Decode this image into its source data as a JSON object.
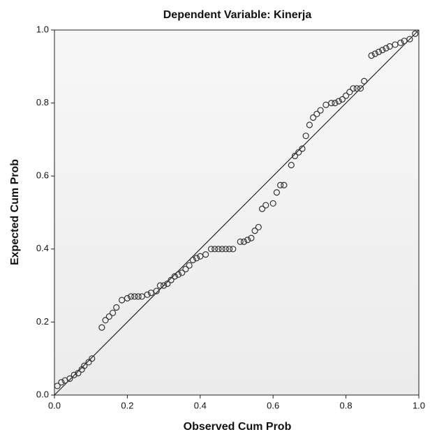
{
  "chart_data": {
    "type": "scatter",
    "title": "Dependent Variable: Kinerja",
    "x_label": "Observed Cum Prob",
    "y_label": "Expected Cum Prob",
    "xlim": [
      0,
      1
    ],
    "ylim": [
      0,
      1
    ],
    "xticks": [
      {
        "value": 0,
        "label": "0.0"
      },
      0.2,
      0.4,
      0.6,
      0.8,
      {
        "value": 1,
        "label": "1.0"
      }
    ],
    "yticks": [
      {
        "value": 0,
        "label": "0.0"
      },
      0.2,
      0.4,
      0.6,
      0.8,
      {
        "value": 1,
        "label": "1.0"
      }
    ],
    "color": "#333333",
    "x": [
      0.008,
      0.019,
      0.029,
      0.042,
      0.054,
      0.065,
      0.075,
      0.082,
      0.094,
      0.103,
      0.13,
      0.14,
      0.15,
      0.16,
      0.17,
      0.185,
      0.2,
      0.21,
      0.22,
      0.23,
      0.24,
      0.255,
      0.265,
      0.28,
      0.29,
      0.3,
      0.31,
      0.32,
      0.33,
      0.34,
      0.35,
      0.36,
      0.37,
      0.38,
      0.39,
      0.4,
      0.415,
      0.43,
      0.44,
      0.45,
      0.46,
      0.47,
      0.48,
      0.49,
      0.51,
      0.52,
      0.53,
      0.54,
      0.55,
      0.56,
      0.57,
      0.58,
      0.6,
      0.61,
      0.62,
      0.63,
      0.65,
      0.66,
      0.67,
      0.68,
      0.69,
      0.7,
      0.71,
      0.72,
      0.73,
      0.745,
      0.76,
      0.77,
      0.78,
      0.79,
      0.8,
      0.81,
      0.82,
      0.83,
      0.84,
      0.85,
      0.87,
      0.88,
      0.89,
      0.9,
      0.91,
      0.92,
      0.935,
      0.95,
      0.96,
      0.975,
      0.99
    ],
    "y": [
      0.025,
      0.035,
      0.04,
      0.045,
      0.055,
      0.06,
      0.07,
      0.08,
      0.09,
      0.1,
      0.185,
      0.205,
      0.215,
      0.225,
      0.24,
      0.26,
      0.265,
      0.27,
      0.27,
      0.27,
      0.27,
      0.275,
      0.28,
      0.285,
      0.3,
      0.3,
      0.305,
      0.315,
      0.325,
      0.33,
      0.335,
      0.345,
      0.355,
      0.37,
      0.375,
      0.38,
      0.385,
      0.4,
      0.4,
      0.4,
      0.4,
      0.4,
      0.4,
      0.4,
      0.42,
      0.42,
      0.425,
      0.43,
      0.45,
      0.46,
      0.51,
      0.52,
      0.525,
      0.555,
      0.575,
      0.575,
      0.63,
      0.655,
      0.665,
      0.675,
      0.71,
      0.74,
      0.76,
      0.77,
      0.78,
      0.795,
      0.8,
      0.8,
      0.805,
      0.81,
      0.82,
      0.83,
      0.84,
      0.84,
      0.84,
      0.86,
      0.93,
      0.935,
      0.94,
      0.945,
      0.95,
      0.955,
      0.96,
      0.965,
      0.97,
      0.975,
      0.99
    ]
  }
}
